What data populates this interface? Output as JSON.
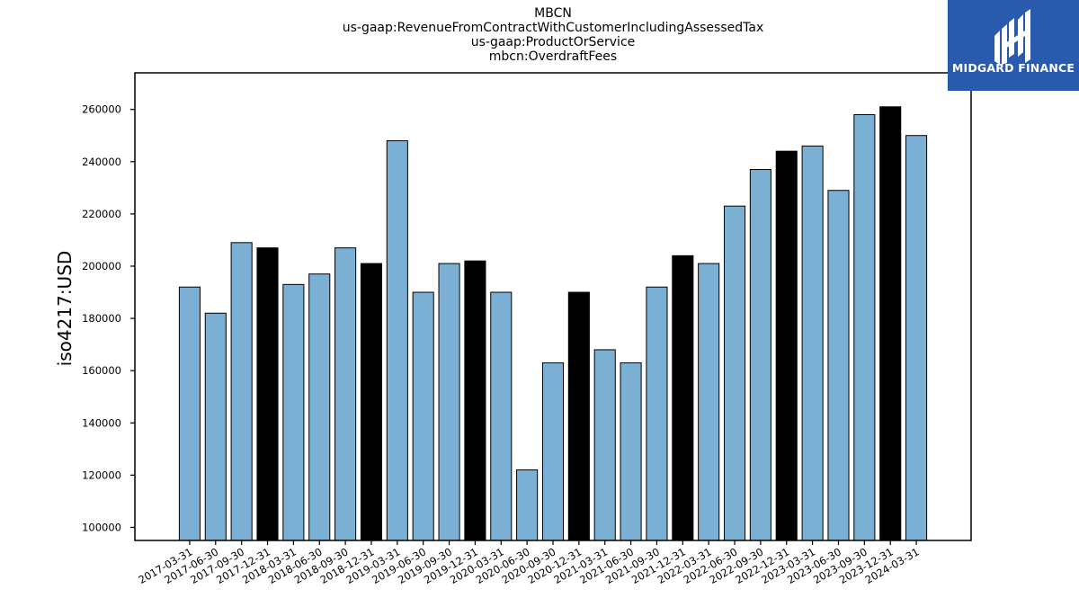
{
  "logo": {
    "text": "MIDGARD FINANCE",
    "background": "#2a5aad"
  },
  "colors": {
    "bar_default": "#7bafd4",
    "bar_highlight": "#000000",
    "bar_edge": "#000000"
  },
  "chart_data": {
    "type": "bar",
    "title_lines": [
      "MBCN",
      "us-gaap:RevenueFromContractWithCustomerIncludingAssessedTax",
      "us-gaap:ProductOrService",
      "mbcn:OverdraftFees"
    ],
    "xlabel": "",
    "ylabel": "iso4217:USD",
    "ylim": [
      95000,
      274000
    ],
    "yticks": [
      100000,
      120000,
      140000,
      160000,
      180000,
      200000,
      220000,
      240000,
      260000
    ],
    "grid": false,
    "categories": [
      "2017-03-31",
      "2017-06-30",
      "2017-09-30",
      "2017-12-31",
      "2018-03-31",
      "2018-06-30",
      "2018-09-30",
      "2018-12-31",
      "2019-03-31",
      "2019-06-30",
      "2019-09-30",
      "2019-12-31",
      "2020-03-31",
      "2020-06-30",
      "2020-09-30",
      "2020-12-31",
      "2021-03-31",
      "2021-06-30",
      "2021-09-30",
      "2021-12-31",
      "2022-03-31",
      "2022-06-30",
      "2022-09-30",
      "2022-12-31",
      "2023-03-31",
      "2023-06-30",
      "2023-09-30",
      "2023-12-31",
      "2024-03-31"
    ],
    "values": [
      192000,
      182000,
      209000,
      207000,
      193000,
      197000,
      207000,
      201000,
      248000,
      190000,
      201000,
      202000,
      190000,
      122000,
      163000,
      190000,
      168000,
      163000,
      192000,
      204000,
      201000,
      223000,
      237000,
      244000,
      246000,
      229000,
      258000,
      261000,
      250000
    ],
    "highlighted": [
      false,
      false,
      false,
      true,
      false,
      false,
      false,
      true,
      false,
      false,
      false,
      true,
      false,
      false,
      false,
      true,
      false,
      false,
      false,
      true,
      false,
      false,
      false,
      true,
      false,
      false,
      false,
      true,
      false
    ]
  }
}
